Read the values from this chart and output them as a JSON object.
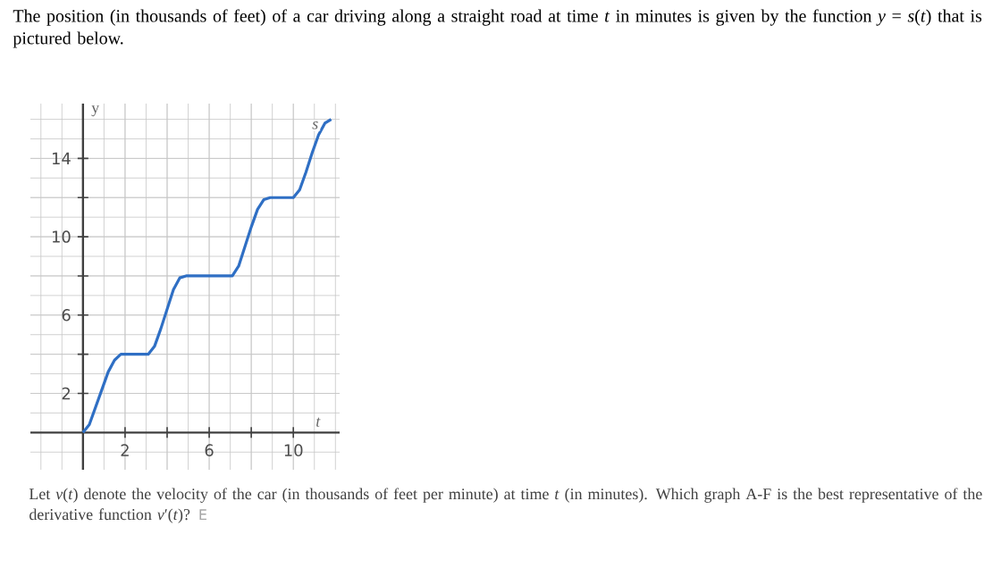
{
  "chart_data": {
    "type": "line",
    "title": "The position (in thousands of feet) of a car driving along a straight road at time *t* in minutes is given by the function *y* = *s*(*t*) that is pictured below.",
    "xlabel": "t",
    "ylabel": "y",
    "x": [
      0,
      0.3,
      0.6,
      0.9,
      1.2,
      1.5,
      1.8,
      3.1,
      3.4,
      3.7,
      4.0,
      4.3,
      4.6,
      4.9,
      7.1,
      7.4,
      7.7,
      8.0,
      8.3,
      8.6,
      8.9,
      10.0,
      10.3,
      10.6,
      10.9,
      11.2,
      11.5,
      11.8
    ],
    "series": [
      {
        "name": "s",
        "color": "#2f6fc4",
        "values": [
          0,
          0.4,
          1.3,
          2.2,
          3.1,
          3.7,
          4,
          4,
          4.4,
          5.3,
          6.3,
          7.3,
          7.9,
          8,
          8,
          8.5,
          9.5,
          10.5,
          11.4,
          11.9,
          12,
          12,
          12.4,
          13.3,
          14.3,
          15.2,
          15.8,
          16
        ]
      }
    ],
    "xlim": [
      -2.5,
      12.2
    ],
    "ylim": [
      -1.9,
      16.8
    ],
    "xticks": [
      2,
      {
        "value": 4,
        "label": null
      },
      6,
      {
        "value": 8,
        "label": null
      },
      10
    ],
    "yticks": [
      2,
      {
        "value": 4,
        "label": null
      },
      6,
      {
        "value": 8,
        "label": null
      },
      10,
      {
        "value": 12,
        "label": null
      },
      14
    ],
    "grid": true,
    "marker": "none",
    "line_style": "solid",
    "annotations": [
      "Let *v*(*t*) denote the velocity of the car (in thousands of feet per minute) at time *t* (in minutes). Which graph A-F is the best representative of the derivative function *v*′(*t*)?",
      "E"
    ]
  }
}
